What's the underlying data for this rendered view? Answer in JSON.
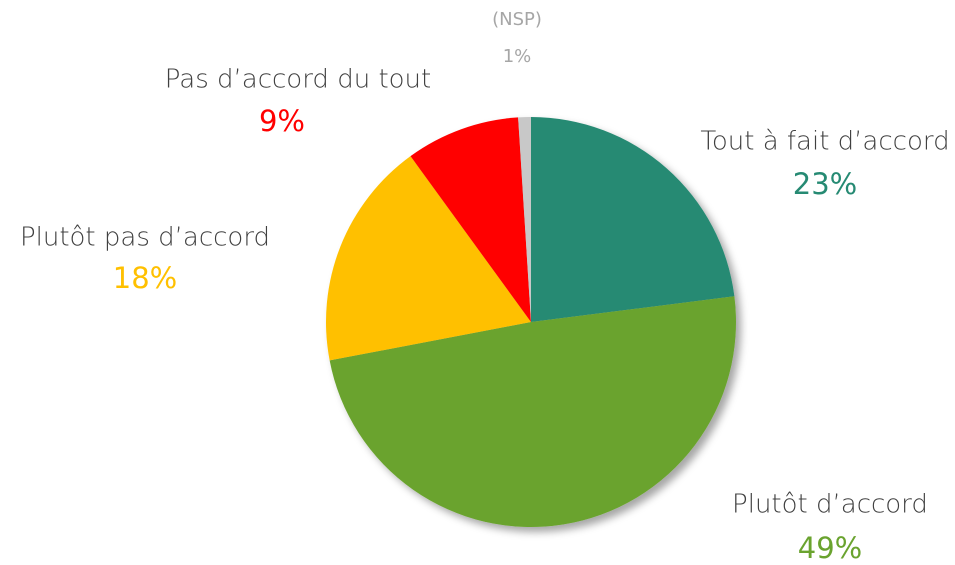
{
  "chart_data": {
    "type": "pie",
    "categories": [
      "Tout à fait d’accord",
      "Plutôt d’accord",
      "Plutôt pas d’accord",
      "Pas d’accord du tout",
      "(NSP)"
    ],
    "values": [
      23,
      49,
      18,
      9,
      1
    ],
    "value_labels": [
      "23%",
      "49%",
      "18%",
      "9%",
      "1%"
    ],
    "colors": [
      "#268a73",
      "#6aa32f",
      "#ffc000",
      "#ff0000",
      "#c8c8c8"
    ]
  }
}
